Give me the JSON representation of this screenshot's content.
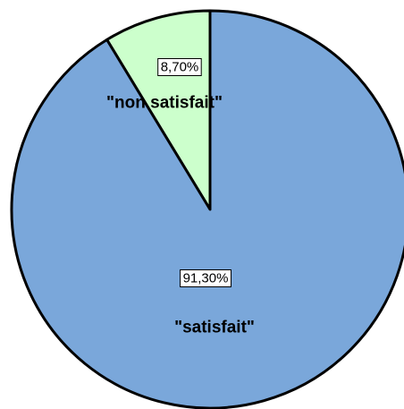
{
  "chart_data": {
    "type": "pie",
    "slices": [
      {
        "label": "\"non satisfait\"",
        "value": 8.7,
        "value_label": "8,70%",
        "color": "#ccffcc"
      },
      {
        "label": "\"satisfait\"",
        "value": 91.3,
        "value_label": "91,30%",
        "color": "#7aa7da"
      }
    ],
    "start": "12 o'clock",
    "direction": "counter-clockwise",
    "legend": "none"
  }
}
